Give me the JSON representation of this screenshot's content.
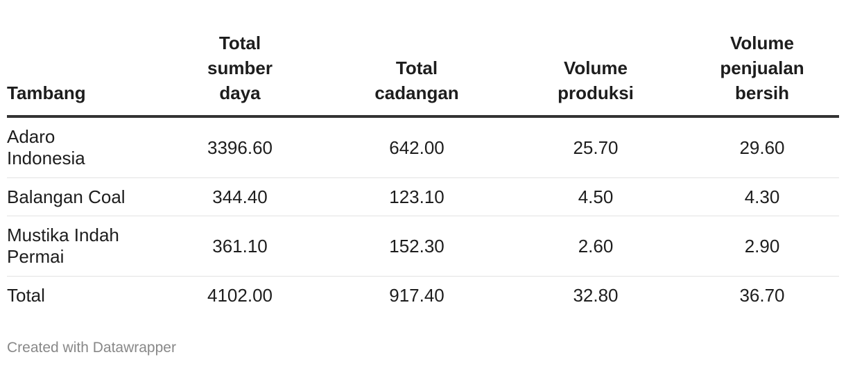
{
  "chart_data": {
    "type": "table",
    "columns": [
      "Tambang",
      "Total sumber daya",
      "Total cadangan",
      "Volume produksi",
      "Volume penjualan bersih"
    ],
    "rows": [
      [
        "Adaro Indonesia",
        "3396.60",
        "642.00",
        "25.70",
        "29.60"
      ],
      [
        "Balangan Coal",
        "344.40",
        "123.10",
        "4.50",
        "4.30"
      ],
      [
        "Mustika Indah Permai",
        "361.10",
        "152.30",
        "2.60",
        "2.90"
      ],
      [
        "Total",
        "4102.00",
        "917.40",
        "32.80",
        "36.70"
      ]
    ]
  },
  "footer": {
    "credit": "Created with Datawrapper"
  }
}
